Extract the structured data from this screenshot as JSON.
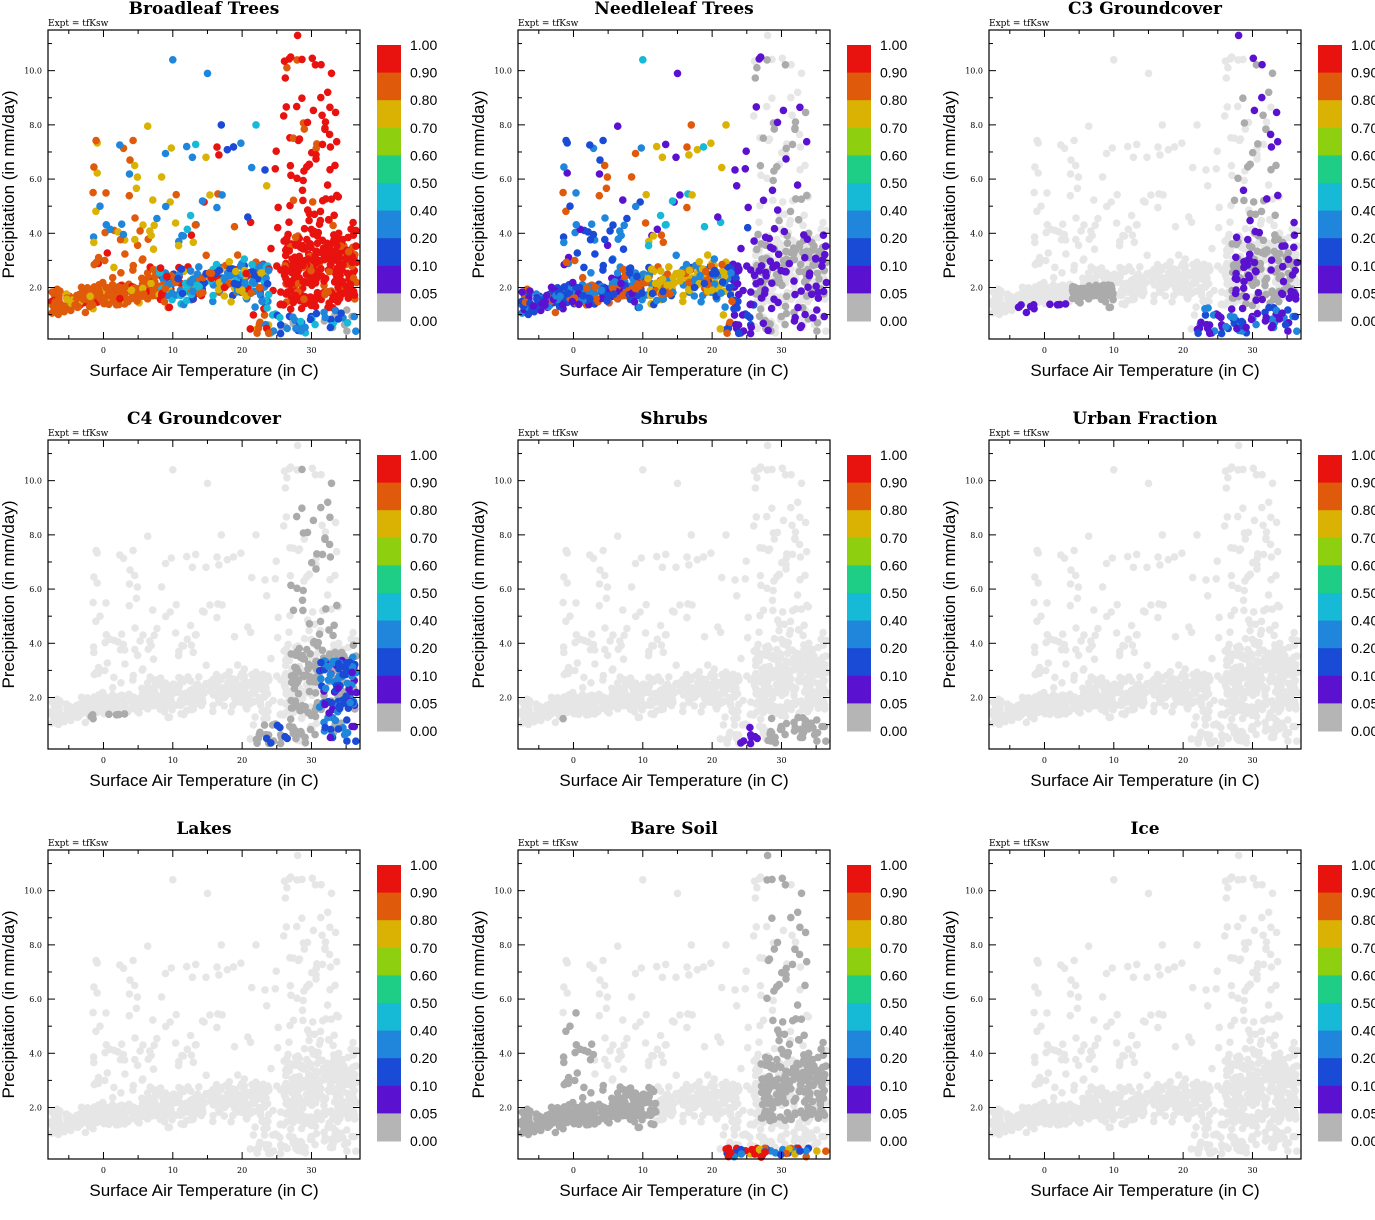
{
  "figure": {
    "expt_label": "Expt = tfKsw",
    "xlabel": "Surface Air Temperature (in C)",
    "ylabel": "Precipitation (in mm/day)",
    "x_ticks": [
      "0",
      "10",
      "20",
      "30"
    ],
    "y_ticks": [
      "2.0",
      "4.0",
      "6.0",
      "8.0",
      "10.0"
    ],
    "xlim": [
      -8,
      37
    ],
    "ylim": [
      0.1,
      11.5
    ],
    "colorbar_labels": [
      "1.00",
      "0.90",
      "0.80",
      "0.70",
      "0.60",
      "0.50",
      "0.40",
      "0.20",
      "0.10",
      "0.05",
      "0.00"
    ],
    "colorbar_colors": [
      "#e8120f",
      "#e05a0c",
      "#d9b203",
      "#8ed00f",
      "#1fce86",
      "#16b9d6",
      "#1f86db",
      "#1a4bd6",
      "#5a12d0",
      "#b5b5b5"
    ],
    "zero_point_color": "#e6e6e6"
  },
  "chart_data": [
    {
      "type": "scatter",
      "title": "Broadleaf Trees",
      "highlight": "broadleaf"
    },
    {
      "type": "scatter",
      "title": "Needleleaf Trees",
      "highlight": "needleleaf"
    },
    {
      "type": "scatter",
      "title": "C3 Groundcover",
      "highlight": "c3"
    },
    {
      "type": "scatter",
      "title": "C4 Groundcover",
      "highlight": "c4"
    },
    {
      "type": "scatter",
      "title": "Shrubs",
      "highlight": "shrubs"
    },
    {
      "type": "scatter",
      "title": "Urban Fraction",
      "highlight": "none"
    },
    {
      "type": "scatter",
      "title": "Lakes",
      "highlight": "none"
    },
    {
      "type": "scatter",
      "title": "Bare Soil",
      "highlight": "baresoil"
    },
    {
      "type": "scatter",
      "title": "Ice",
      "highlight": "none"
    }
  ]
}
